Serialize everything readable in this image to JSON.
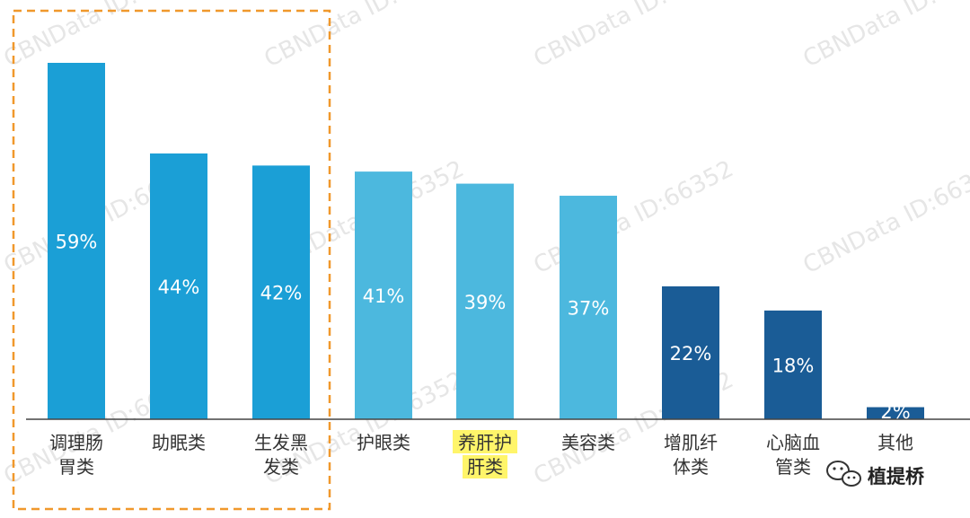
{
  "chart_data": {
    "type": "bar",
    "categories": [
      [
        "调理肠",
        "胃类"
      ],
      [
        "助眠类"
      ],
      [
        "生发黑",
        "发类"
      ],
      [
        "护眼类"
      ],
      [
        "养肝护",
        "肝类"
      ],
      [
        "美容类"
      ],
      [
        "增肌纤",
        "体类"
      ],
      [
        "心脑血",
        "管类"
      ],
      [
        "其他"
      ]
    ],
    "values": [
      59,
      44,
      42,
      41,
      39,
      37,
      22,
      18,
      2
    ],
    "value_labels": [
      "59%",
      "44%",
      "42%",
      "41%",
      "39%",
      "37%",
      "22%",
      "18%",
      "2%"
    ],
    "ylim": [
      0,
      59
    ],
    "grid": false,
    "highlighted_group": [
      0,
      1,
      2
    ],
    "highlighted_category": 4,
    "bar_colors": [
      "#1b9fd6",
      "#1b9fd6",
      "#1b9fd6",
      "#4cb8de",
      "#4cb8de",
      "#4cb8de",
      "#1a5c96",
      "#1a5c96",
      "#1a5c96"
    ]
  },
  "colors": {
    "highlight_box": "#f0982c",
    "label_highlight": "#fff56a",
    "axis": "#444444"
  },
  "watermark": "CBNData ID:66352",
  "brand": {
    "name": "植提桥",
    "icon": "wechat-icon"
  }
}
